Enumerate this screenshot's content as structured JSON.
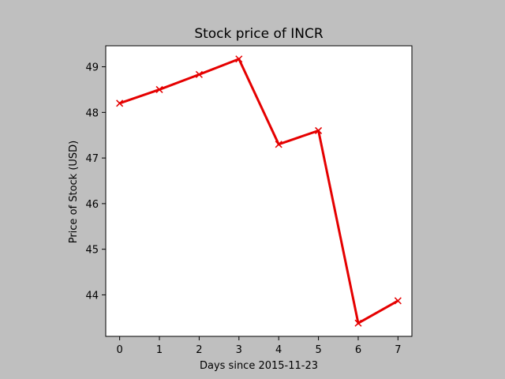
{
  "chart_data": {
    "type": "line",
    "title": "Stock price of INCR",
    "xlabel": "Days since 2015-11-23",
    "ylabel": "Price of Stock (USD)",
    "x": [
      0,
      1,
      2,
      3,
      4,
      5,
      6,
      7
    ],
    "series": [
      {
        "values": [
          48.2,
          48.5,
          48.83,
          49.17,
          47.3,
          47.6,
          43.38,
          43.87
        ],
        "color": "#e50000",
        "marker": "x"
      }
    ],
    "xlim": [
      -0.35,
      7.35
    ],
    "ylim": [
      43.09,
      49.46
    ],
    "xticks": [
      0,
      1,
      2,
      3,
      4,
      5,
      6,
      7
    ],
    "yticks": [
      44,
      45,
      46,
      47,
      48,
      49
    ],
    "grid": false
  }
}
